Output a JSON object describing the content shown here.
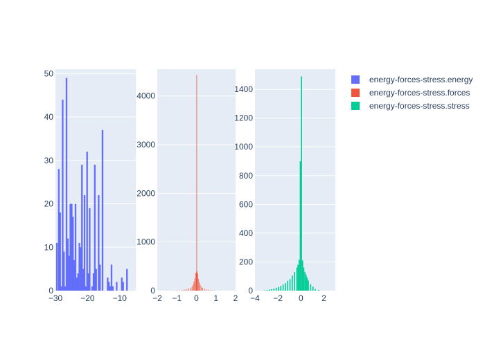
{
  "chart_data": [
    {
      "type": "bar",
      "subtype": "histogram",
      "series_name": "energy-forces-stress.energy",
      "color": "#636efa",
      "xlim": [
        -30,
        -5
      ],
      "ylim": [
        0,
        51
      ],
      "x_ticks": [
        -30,
        -20,
        -10
      ],
      "x_tick_labels": [
        "−30",
        "−20",
        "−10"
      ],
      "y_ticks": [
        0,
        10,
        20,
        30,
        40,
        50
      ],
      "bin_width": 0.5,
      "bins": [
        [
          -29.8,
          11
        ],
        [
          -29.2,
          28
        ],
        [
          -28.8,
          18
        ],
        [
          -28.4,
          1
        ],
        [
          -28.0,
          44
        ],
        [
          -27.6,
          9
        ],
        [
          -27.2,
          1
        ],
        [
          -26.8,
          49
        ],
        [
          -26.4,
          12
        ],
        [
          -26.0,
          8
        ],
        [
          -25.6,
          20
        ],
        [
          -25.2,
          20
        ],
        [
          -24.8,
          17
        ],
        [
          -24.4,
          7
        ],
        [
          -24.0,
          20
        ],
        [
          -23.6,
          3
        ],
        [
          -23.2,
          4
        ],
        [
          -22.8,
          11
        ],
        [
          -22.4,
          10
        ],
        [
          -22.0,
          29
        ],
        [
          -21.6,
          5
        ],
        [
          -21.2,
          22
        ],
        [
          -20.8,
          1
        ],
        [
          -20.4,
          32
        ],
        [
          -20.0,
          4
        ],
        [
          -19.6,
          19
        ],
        [
          -18.8,
          1
        ],
        [
          -18.4,
          4
        ],
        [
          -18.0,
          29
        ],
        [
          -17.6,
          5
        ],
        [
          -16.8,
          22
        ],
        [
          -16.4,
          6
        ],
        [
          -15.6,
          37
        ],
        [
          -14.0,
          3
        ],
        [
          -13.6,
          2
        ],
        [
          -13.2,
          1
        ],
        [
          -12.8,
          6
        ],
        [
          -12.4,
          1
        ],
        [
          -11.2,
          2
        ],
        [
          -9.6,
          3
        ],
        [
          -9.2,
          2
        ],
        [
          -8.0,
          5
        ]
      ]
    },
    {
      "type": "bar",
      "subtype": "histogram",
      "series_name": "energy-forces-stress.forces",
      "color": "#ef553b",
      "xlim": [
        -2,
        2
      ],
      "ylim": [
        0,
        4550
      ],
      "x_ticks": [
        -2,
        -1,
        0,
        1,
        2
      ],
      "x_tick_labels": [
        "−2",
        "−1",
        "0",
        "1",
        "2"
      ],
      "y_ticks": [
        0,
        1000,
        2000,
        3000,
        4000
      ],
      "bin_width": 0.02,
      "bins": [
        [
          -1.0,
          5
        ],
        [
          -0.9,
          8
        ],
        [
          -0.8,
          10
        ],
        [
          -0.7,
          15
        ],
        [
          -0.6,
          20
        ],
        [
          -0.5,
          30
        ],
        [
          -0.4,
          45
        ],
        [
          -0.3,
          60
        ],
        [
          -0.24,
          90
        ],
        [
          -0.18,
          130
        ],
        [
          -0.14,
          180
        ],
        [
          -0.1,
          250
        ],
        [
          -0.06,
          360
        ],
        [
          -0.02,
          380
        ],
        [
          0.0,
          4430
        ],
        [
          0.02,
          400
        ],
        [
          0.06,
          350
        ],
        [
          0.1,
          240
        ],
        [
          0.14,
          170
        ],
        [
          0.18,
          120
        ],
        [
          0.24,
          80
        ],
        [
          0.3,
          55
        ],
        [
          0.4,
          40
        ],
        [
          0.5,
          28
        ],
        [
          0.6,
          18
        ],
        [
          0.7,
          12
        ],
        [
          0.8,
          8
        ],
        [
          0.9,
          5
        ]
      ]
    },
    {
      "type": "bar",
      "subtype": "histogram",
      "series_name": "energy-forces-stress.stress",
      "color": "#00cc96",
      "xlim": [
        -4,
        3
      ],
      "ylim": [
        0,
        1540
      ],
      "x_ticks": [
        -4,
        -2,
        0,
        2
      ],
      "x_tick_labels": [
        "−4",
        "−2",
        "0",
        "2"
      ],
      "y_ticks": [
        0,
        200,
        400,
        600,
        800,
        1000,
        1200,
        1400
      ],
      "bin_width": 0.1,
      "bins": [
        [
          -3.2,
          3
        ],
        [
          -3.0,
          5
        ],
        [
          -2.8,
          8
        ],
        [
          -2.6,
          10
        ],
        [
          -2.4,
          14
        ],
        [
          -2.2,
          20
        ],
        [
          -2.0,
          26
        ],
        [
          -1.8,
          32
        ],
        [
          -1.6,
          42
        ],
        [
          -1.4,
          52
        ],
        [
          -1.2,
          68
        ],
        [
          -1.0,
          80
        ],
        [
          -0.8,
          105
        ],
        [
          -0.6,
          130
        ],
        [
          -0.4,
          160
        ],
        [
          -0.3,
          180
        ],
        [
          -0.2,
          215
        ],
        [
          -0.1,
          900
        ],
        [
          0.0,
          1490
        ],
        [
          0.1,
          210
        ],
        [
          0.2,
          160
        ],
        [
          0.3,
          130
        ],
        [
          0.4,
          110
        ],
        [
          0.5,
          90
        ],
        [
          0.6,
          70
        ],
        [
          0.8,
          45
        ],
        [
          1.0,
          28
        ],
        [
          1.2,
          12
        ],
        [
          1.5,
          5
        ]
      ]
    }
  ],
  "legend": {
    "placement": "top-right",
    "items": [
      {
        "label": "energy-forces-stress.energy",
        "color": "#636efa"
      },
      {
        "label": "energy-forces-stress.forces",
        "color": "#ef553b"
      },
      {
        "label": "energy-forces-stress.stress",
        "color": "#00cc96"
      }
    ]
  },
  "plot_background": "#e5ecf6",
  "grid_color": "#ffffff",
  "text_color": "#2a3f5f"
}
